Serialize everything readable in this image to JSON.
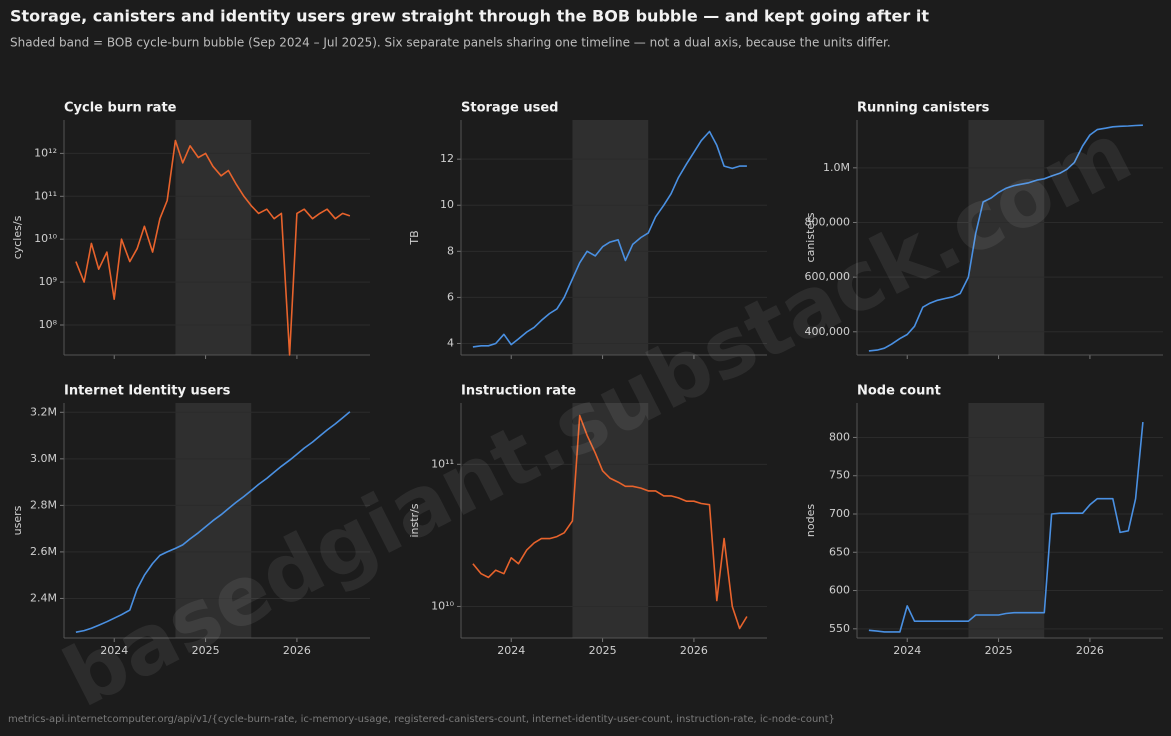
{
  "title": "Storage, canisters and identity users grew straight through the BOB bubble — and kept going after it",
  "subtitle": "Shaded band = BOB cycle-burn bubble (Sep 2024 – Jul 2025). Six separate panels sharing one timeline — not a dual axis, because the units differ.",
  "source": "metrics-api.internetcomputer.org/api/v1/{cycle-burn-rate, ic-memory-usage, registered-canisters-count, internet-identity-user-count, instruction-rate, ic-node-count}",
  "watermark": "basedgiant.substack.com",
  "chart_data": [
    {
      "type": "line",
      "title": "Cycle burn rate",
      "ylabel": "cycles/s",
      "color": "#e8632c",
      "log_y": true,
      "grid": true,
      "show_xtick_labels": false,
      "band": [
        2024.67,
        2025.5
      ],
      "xlim": [
        2023.45,
        2026.8
      ],
      "xticks": [
        2024,
        2025,
        2026
      ],
      "ylim": [
        20000000,
        6000000000000
      ],
      "yticks": [
        {
          "value": 100000000,
          "label": "10⁸"
        },
        {
          "value": 1000000000,
          "label": "10⁹"
        },
        {
          "value": 10000000000,
          "label": "10¹⁰"
        },
        {
          "value": 100000000000,
          "label": "10¹¹"
        },
        {
          "value": 1000000000000,
          "label": "10¹²"
        }
      ],
      "x": [
        2023.58,
        2023.67,
        2023.75,
        2023.83,
        2023.92,
        2024.0,
        2024.08,
        2024.17,
        2024.25,
        2024.33,
        2024.42,
        2024.5,
        2024.58,
        2024.67,
        2024.75,
        2024.83,
        2024.92,
        2025.0,
        2025.08,
        2025.17,
        2025.25,
        2025.33,
        2025.42,
        2025.5,
        2025.58,
        2025.67,
        2025.75,
        2025.83,
        2025.92,
        2026.0,
        2026.08,
        2026.17,
        2026.25,
        2026.33,
        2026.42,
        2026.5,
        2026.58
      ],
      "values": [
        3000000000,
        1000000000,
        8000000000,
        2000000000,
        5000000000,
        400000000,
        10000000000,
        3000000000,
        6000000000,
        20000000000,
        5000000000,
        30000000000,
        80000000000,
        2000000000000,
        600000000000,
        1500000000000,
        800000000000,
        1000000000000,
        500000000000,
        300000000000,
        400000000000,
        200000000000,
        100000000000,
        60000000000,
        40000000000,
        50000000000,
        30000000000,
        40000000000,
        20000000,
        40000000000,
        50000000000,
        30000000000,
        40000000000,
        50000000000,
        30000000000,
        40000000000,
        35000000000
      ]
    },
    {
      "type": "line",
      "title": "Storage used",
      "ylabel": "TB",
      "color": "#4a90e2",
      "log_y": false,
      "grid": true,
      "show_xtick_labels": false,
      "band": [
        2024.67,
        2025.5
      ],
      "xlim": [
        2023.45,
        2026.8
      ],
      "xticks": [
        2024,
        2025,
        2026
      ],
      "ylim": [
        3.5,
        13.7
      ],
      "yticks": [
        4,
        6,
        8,
        10,
        12
      ],
      "x": [
        2023.58,
        2023.67,
        2023.75,
        2023.83,
        2023.92,
        2024.0,
        2024.08,
        2024.17,
        2024.25,
        2024.33,
        2024.42,
        2024.5,
        2024.58,
        2024.67,
        2024.75,
        2024.83,
        2024.92,
        2025.0,
        2025.08,
        2025.17,
        2025.25,
        2025.33,
        2025.42,
        2025.5,
        2025.58,
        2025.67,
        2025.75,
        2025.83,
        2025.92,
        2026.0,
        2026.08,
        2026.17,
        2026.25,
        2026.33,
        2026.42,
        2026.5,
        2026.58
      ],
      "values": [
        3.85,
        3.9,
        3.9,
        4.0,
        4.4,
        3.95,
        4.2,
        4.5,
        4.7,
        5.0,
        5.3,
        5.5,
        6.0,
        6.8,
        7.5,
        8.0,
        7.8,
        8.2,
        8.4,
        8.5,
        7.6,
        8.3,
        8.6,
        8.8,
        9.5,
        10.0,
        10.5,
        11.2,
        11.8,
        12.3,
        12.8,
        13.2,
        12.6,
        11.7,
        11.6,
        11.7,
        11.7
      ]
    },
    {
      "type": "line",
      "title": "Running canisters",
      "ylabel": "canisters",
      "color": "#4a90e2",
      "log_y": false,
      "grid": true,
      "show_xtick_labels": false,
      "band": [
        2024.67,
        2025.5
      ],
      "xlim": [
        2023.45,
        2026.8
      ],
      "xticks": [
        2024,
        2025,
        2026
      ],
      "ylim": [
        315000,
        1175000
      ],
      "yticks": [
        {
          "value": 400000,
          "label": "400,000"
        },
        {
          "value": 600000,
          "label": "600,000"
        },
        {
          "value": 800000,
          "label": "800,000"
        },
        {
          "value": 1000000,
          "label": "1.0M"
        }
      ],
      "x": [
        2023.58,
        2023.67,
        2023.75,
        2023.83,
        2023.92,
        2024.0,
        2024.08,
        2024.17,
        2024.25,
        2024.33,
        2024.42,
        2024.5,
        2024.58,
        2024.67,
        2024.75,
        2024.83,
        2024.92,
        2025.0,
        2025.08,
        2025.17,
        2025.25,
        2025.33,
        2025.42,
        2025.5,
        2025.58,
        2025.67,
        2025.75,
        2025.83,
        2025.92,
        2026.0,
        2026.08,
        2026.17,
        2026.25,
        2026.33,
        2026.42,
        2026.5,
        2026.58
      ],
      "values": [
        330000,
        333000,
        340000,
        355000,
        375000,
        390000,
        420000,
        490000,
        505000,
        515000,
        522000,
        528000,
        540000,
        600000,
        760000,
        875000,
        890000,
        910000,
        925000,
        935000,
        940000,
        945000,
        955000,
        960000,
        970000,
        980000,
        995000,
        1020000,
        1080000,
        1120000,
        1140000,
        1145000,
        1150000,
        1152000,
        1153000,
        1155000,
        1156000
      ]
    },
    {
      "type": "line",
      "title": "Internet Identity users",
      "ylabel": "users",
      "color": "#4a90e2",
      "log_y": false,
      "grid": true,
      "show_xtick_labels": true,
      "band": [
        2024.67,
        2025.5
      ],
      "xlim": [
        2023.45,
        2026.8
      ],
      "xticks": [
        2024,
        2025,
        2026
      ],
      "ylim": [
        2230000,
        3240000
      ],
      "yticks": [
        {
          "value": 2400000,
          "label": "2.4M"
        },
        {
          "value": 2600000,
          "label": "2.6M"
        },
        {
          "value": 2800000,
          "label": "2.8M"
        },
        {
          "value": 3000000,
          "label": "3.0M"
        },
        {
          "value": 3200000,
          "label": "3.2M"
        }
      ],
      "x": [
        2023.58,
        2023.67,
        2023.75,
        2023.83,
        2023.92,
        2024.0,
        2024.08,
        2024.17,
        2024.25,
        2024.33,
        2024.42,
        2024.5,
        2024.58,
        2024.67,
        2024.75,
        2024.83,
        2024.92,
        2025.0,
        2025.08,
        2025.17,
        2025.25,
        2025.33,
        2025.42,
        2025.5,
        2025.58,
        2025.67,
        2025.75,
        2025.83,
        2025.92,
        2026.0,
        2026.08,
        2026.17,
        2026.25,
        2026.33,
        2026.42,
        2026.5,
        2026.58
      ],
      "values": [
        2255000,
        2262000,
        2272000,
        2285000,
        2300000,
        2315000,
        2330000,
        2350000,
        2440000,
        2500000,
        2550000,
        2585000,
        2600000,
        2615000,
        2630000,
        2656000,
        2682000,
        2708000,
        2734000,
        2760000,
        2786000,
        2812000,
        2838000,
        2864000,
        2890000,
        2916000,
        2942000,
        2968000,
        2994000,
        3020000,
        3046000,
        3072000,
        3098000,
        3124000,
        3150000,
        3176000,
        3202000
      ]
    },
    {
      "type": "line",
      "title": "Instruction rate",
      "ylabel": "instr/s",
      "color": "#e8632c",
      "log_y": true,
      "grid": true,
      "show_xtick_labels": true,
      "band": [
        2024.67,
        2025.5
      ],
      "xlim": [
        2023.45,
        2026.8
      ],
      "xticks": [
        2024,
        2025,
        2026
      ],
      "ylim": [
        6000000000,
        270000000000
      ],
      "yticks": [
        {
          "value": 10000000000,
          "label": "10¹⁰"
        },
        {
          "value": 100000000000,
          "label": "10¹¹"
        }
      ],
      "x": [
        2023.58,
        2023.67,
        2023.75,
        2023.83,
        2023.92,
        2024.0,
        2024.08,
        2024.17,
        2024.25,
        2024.33,
        2024.42,
        2024.5,
        2024.58,
        2024.67,
        2024.75,
        2024.83,
        2024.92,
        2025.0,
        2025.08,
        2025.17,
        2025.25,
        2025.33,
        2025.42,
        2025.5,
        2025.58,
        2025.67,
        2025.75,
        2025.83,
        2025.92,
        2026.0,
        2026.08,
        2026.17,
        2026.25,
        2026.33,
        2026.42,
        2026.5,
        2026.58
      ],
      "values": [
        20000000000,
        17000000000,
        16000000000,
        18000000000,
        17000000000,
        22000000000,
        20000000000,
        25000000000,
        28000000000,
        30000000000,
        30000000000,
        31000000000,
        33000000000,
        40000000000,
        220000000000,
        160000000000,
        120000000000,
        90000000000,
        80000000000,
        75000000000,
        70000000000,
        70000000000,
        68000000000,
        65000000000,
        65000000000,
        60000000000,
        60000000000,
        58000000000,
        55000000000,
        55000000000,
        53000000000,
        52000000000,
        11000000000,
        30000000000,
        10000000000,
        7000000000,
        8500000000
      ]
    },
    {
      "type": "line",
      "title": "Node count",
      "ylabel": "nodes",
      "color": "#4a90e2",
      "log_y": false,
      "grid": true,
      "show_xtick_labels": true,
      "band": [
        2024.67,
        2025.5
      ],
      "xlim": [
        2023.45,
        2026.8
      ],
      "xticks": [
        2024,
        2025,
        2026
      ],
      "ylim": [
        538,
        845
      ],
      "yticks": [
        550,
        600,
        650,
        700,
        750,
        800
      ],
      "x": [
        2023.58,
        2023.67,
        2023.75,
        2023.83,
        2023.92,
        2024.0,
        2024.08,
        2024.17,
        2024.25,
        2024.33,
        2024.42,
        2024.5,
        2024.58,
        2024.67,
        2024.75,
        2024.83,
        2024.92,
        2025.0,
        2025.08,
        2025.17,
        2025.25,
        2025.33,
        2025.42,
        2025.5,
        2025.58,
        2025.67,
        2025.75,
        2025.83,
        2025.92,
        2026.0,
        2026.08,
        2026.17,
        2026.25,
        2026.33,
        2026.42,
        2026.5,
        2026.58
      ],
      "values": [
        548,
        547,
        546,
        546,
        546,
        580,
        560,
        560,
        560,
        560,
        560,
        560,
        560,
        560,
        568,
        568,
        568,
        568,
        570,
        571,
        571,
        571,
        571,
        571,
        700,
        701,
        701,
        701,
        701,
        712,
        720,
        720,
        720,
        676,
        678,
        720,
        820
      ]
    }
  ]
}
